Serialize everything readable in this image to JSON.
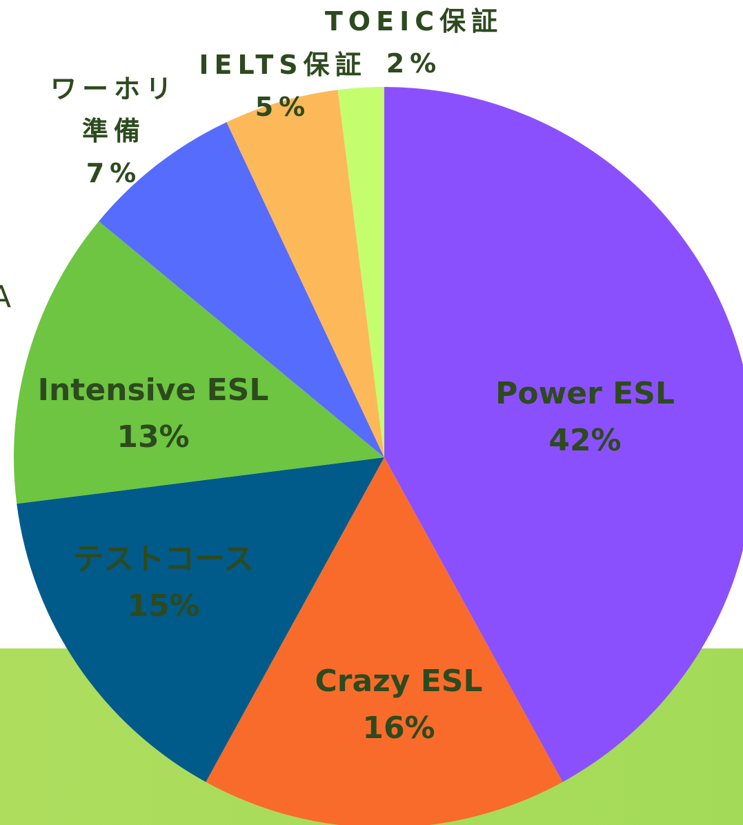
{
  "chart_data": {
    "type": "pie",
    "categories": [
      "Power ESL",
      "Crazy ESL",
      "テストコース",
      "Intensive ESL",
      "ワーホリ準備",
      "IELTS保証",
      "TOEIC保証"
    ],
    "values": [
      42,
      16,
      15,
      13,
      7,
      5,
      2
    ],
    "value_labels": [
      "42%",
      "16%",
      "15%",
      "13%",
      "7%",
      "5%",
      "2%"
    ],
    "colors": [
      "#8b50fe",
      "#f96b2a",
      "#005b8a",
      "#6dc541",
      "#566cfd",
      "#fdb85a",
      "#c4fe6e"
    ],
    "fragment": "A"
  }
}
